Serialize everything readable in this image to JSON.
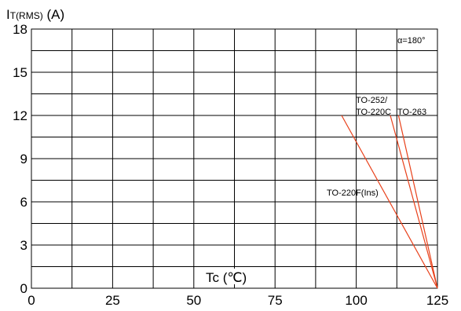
{
  "chart_data": {
    "type": "line",
    "ylabel_main": "I",
    "ylabel_sub": "T(RMS)",
    "ylabel_unit": " (A)",
    "xlabel": "Tc (℃)",
    "xlim": [
      0,
      125
    ],
    "ylim": [
      0,
      18
    ],
    "x_ticks": [
      "0",
      "25",
      "50",
      "75",
      "100",
      "125"
    ],
    "y_ticks": [
      "0",
      "3",
      "6",
      "9",
      "12",
      "15",
      "18"
    ],
    "grid": true,
    "annotation": "α=180°",
    "series": [
      {
        "name": "TO-220F(Ins)",
        "x": [
          95.5,
          125
        ],
        "y": [
          12,
          0
        ]
      },
      {
        "name": "TO-252/ TO-220C",
        "x": [
          110.5,
          125
        ],
        "y": [
          12,
          0
        ]
      },
      {
        "name": "TO-263",
        "x": [
          113,
          125
        ],
        "y": [
          12,
          0
        ]
      }
    ],
    "line_color": "#e8401a"
  }
}
